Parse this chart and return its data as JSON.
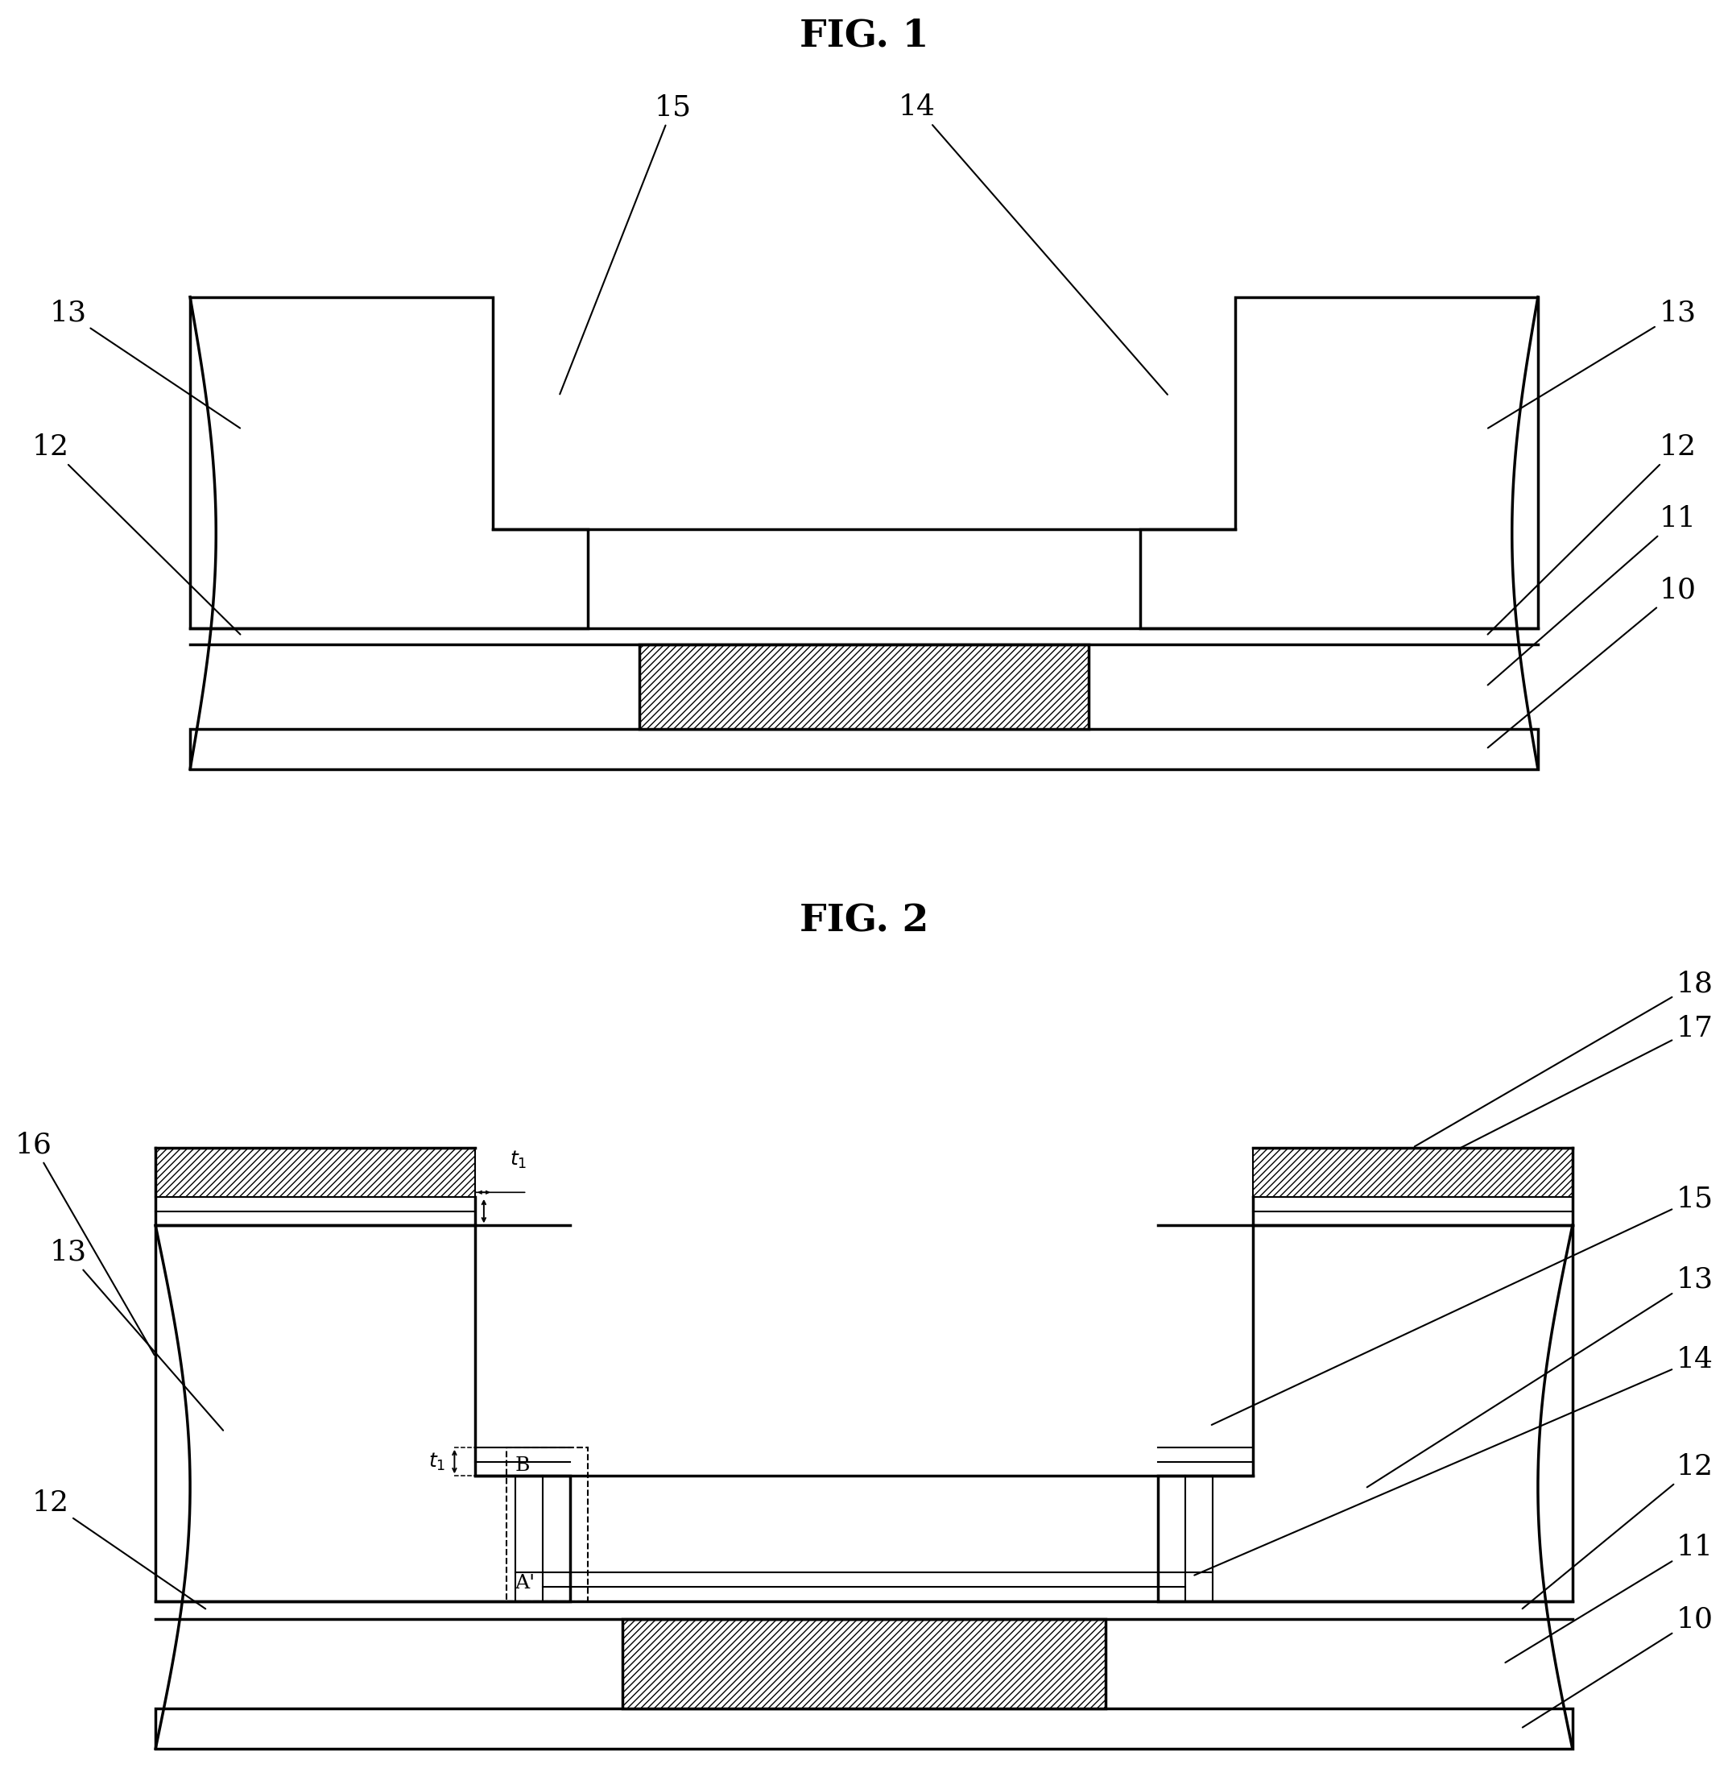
{
  "bg_color": "#ffffff",
  "fig1_title": "FIG. 1",
  "fig2_title": "FIG. 2",
  "lw_main": 2.5,
  "lw_thin": 1.5,
  "lw_ann": 1.5,
  "label_fontsize": 26,
  "title_fontsize": 34
}
